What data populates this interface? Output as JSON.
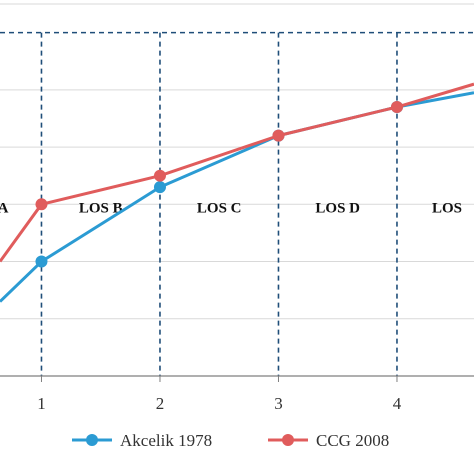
{
  "chart_data": {
    "type": "line",
    "x_ticks": [
      "1",
      "2",
      "3",
      "4"
    ],
    "xlim": [
      0.65,
      4.65
    ],
    "ylim": [
      0,
      6.5
    ],
    "grid": true,
    "legend_placement": "bottom",
    "series": [
      {
        "name": "Akcelik 1978",
        "color": "#2b9bd3",
        "x": [
          0.65,
          1,
          2,
          3,
          4,
          4.65
        ],
        "y": [
          1.3,
          2.0,
          3.3,
          4.2,
          4.7,
          4.95
        ],
        "markers": [
          1,
          2,
          3,
          4
        ]
      },
      {
        "name": "CCG 2008",
        "color": "#e05c5c",
        "x": [
          0.65,
          1,
          2,
          3,
          4,
          4.65
        ],
        "y": [
          2.0,
          3.0,
          3.5,
          4.2,
          4.7,
          5.1
        ],
        "markers": [
          1,
          2,
          3,
          4
        ]
      }
    ],
    "zones": [
      {
        "label": "A",
        "x_from": 0.65,
        "x_to": 1
      },
      {
        "label": "LOS B",
        "x_from": 1,
        "x_to": 2
      },
      {
        "label": "LOS C",
        "x_from": 2,
        "x_to": 3
      },
      {
        "label": "LOS D",
        "x_from": 3,
        "x_to": 4
      },
      {
        "label": "LOS",
        "x_from": 4,
        "x_to": 4.65
      }
    ],
    "colors": {
      "grid": "#d9d9d9",
      "dashed": "#1f4e79",
      "axis": "#7f7f7f"
    }
  }
}
